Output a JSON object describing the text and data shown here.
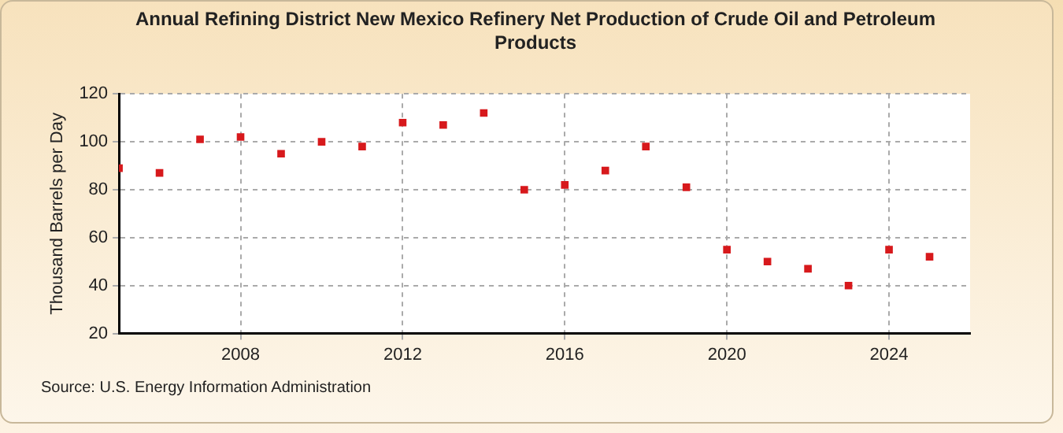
{
  "chart_data": {
    "type": "scatter",
    "title": "Annual Refining District New Mexico Refinery Net Production of Crude Oil and Petroleum Products",
    "ylabel": "Thousand Barrels per Day",
    "annotations": [
      "Source: U.S. Energy Information Administration"
    ],
    "x": [
      2005,
      2006,
      2007,
      2008,
      2009,
      2010,
      2011,
      2012,
      2013,
      2014,
      2015,
      2016,
      2017,
      2018,
      2019,
      2020,
      2021,
      2022,
      2023,
      2024,
      2025
    ],
    "series": [
      {
        "color": "#d7191c",
        "values": [
          89,
          87,
          101,
          102,
          95,
          100,
          98,
          108,
          107,
          112,
          80,
          82,
          88,
          98,
          81,
          55,
          50,
          47,
          40,
          55,
          52
        ]
      }
    ],
    "xlim": [
      2005,
      2026
    ],
    "xticks": [
      2008,
      2012,
      2016,
      2020,
      2024
    ],
    "ylim": [
      20,
      120
    ],
    "yticks": [
      20,
      40,
      60,
      80,
      100,
      120
    ],
    "grid": true,
    "legend": false,
    "marker": "square"
  }
}
